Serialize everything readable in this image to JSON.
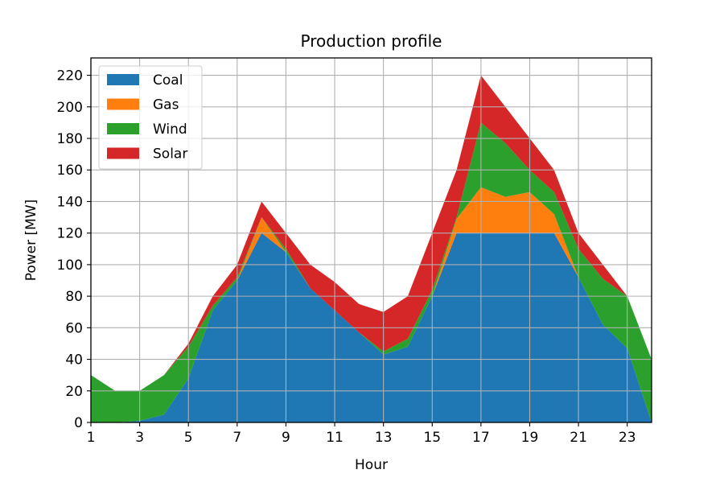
{
  "chart_data": {
    "type": "area",
    "stacked": true,
    "title": "Production profile",
    "xlabel": "Hour",
    "ylabel": "Power [MW]",
    "xlim": [
      1,
      24
    ],
    "ylim": [
      0,
      231
    ],
    "x": [
      1,
      2,
      3,
      4,
      5,
      6,
      7,
      8,
      9,
      10,
      11,
      12,
      13,
      14,
      15,
      16,
      17,
      18,
      19,
      20,
      21,
      22,
      23,
      24
    ],
    "x_ticks": [
      1,
      3,
      5,
      7,
      9,
      11,
      13,
      15,
      17,
      19,
      21,
      23
    ],
    "y_ticks": [
      0,
      20,
      40,
      60,
      80,
      100,
      120,
      140,
      160,
      180,
      200,
      220
    ],
    "grid": true,
    "legend_position": "top-left",
    "series": [
      {
        "name": "Coal",
        "color": "#1f77b4",
        "values": [
          0,
          0,
          1,
          5,
          28,
          71,
          90,
          120,
          108,
          85,
          71,
          57,
          43,
          48,
          80,
          120,
          120,
          120,
          120,
          120,
          92,
          62,
          47,
          0
        ]
      },
      {
        "name": "Gas",
        "color": "#ff7f0e",
        "values": [
          0,
          0,
          0,
          0,
          0,
          0,
          0,
          10,
          0,
          0,
          0,
          0,
          0,
          0,
          0,
          9,
          29,
          23,
          26,
          12,
          0,
          0,
          0,
          0
        ]
      },
      {
        "name": "Wind",
        "color": "#2ca02c",
        "values": [
          30,
          20,
          19,
          25,
          20,
          3,
          2,
          0,
          2,
          0,
          0,
          0,
          2,
          5,
          4,
          1,
          41,
          34,
          14,
          14,
          18,
          29,
          33,
          40
        ]
      },
      {
        "name": "Solar",
        "color": "#d62728",
        "values": [
          0,
          0,
          0,
          0,
          2,
          6,
          8,
          10,
          10,
          15,
          18,
          18,
          25,
          27,
          36,
          30,
          30,
          23,
          20,
          14,
          10,
          9,
          0,
          0
        ]
      }
    ]
  }
}
